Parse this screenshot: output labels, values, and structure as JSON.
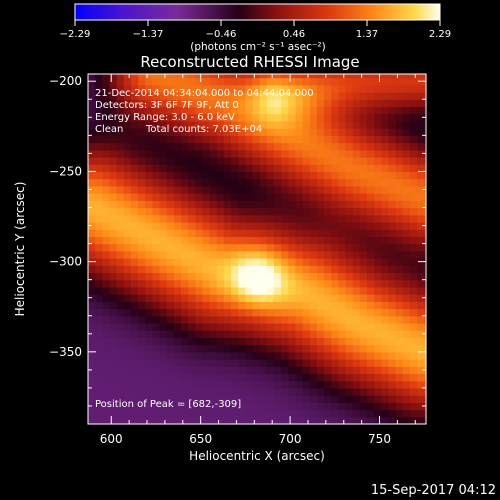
{
  "chart_data": {
    "type": "heatmap",
    "title": "Reconstructed RHESSI Image",
    "xlabel": "Heliocentric X (arcsec)",
    "ylabel": "Heliocentric Y (arcsec)",
    "xlim": [
      587,
      776
    ],
    "ylim": [
      -390,
      -196
    ],
    "x_ticks": [
      600,
      650,
      700,
      750
    ],
    "y_ticks": [
      -200,
      -250,
      -300,
      -350
    ],
    "colorbar": {
      "min": -2.29,
      "max": 2.29,
      "tick_labels": [
        "-2.29",
        "-1.37",
        "-0.46",
        "0.46",
        "1.37",
        "2.29"
      ],
      "units_label": "(photons cm⁻² s⁻¹ asec⁻²)",
      "colors": [
        "#0000ff",
        "#5010c0",
        "#7a2a9a",
        "#200010",
        "#8a1010",
        "#e03a10",
        "#ff8a18",
        "#ffd84a",
        "#fffff0"
      ]
    },
    "annotations": {
      "time_range": "21-Dec-2014 04:34:04.000 to 04:44:04.000",
      "detectors": "Detectors: 3F 6F 7F 9F, Att 0",
      "energy": "Energy Range: 3.0 - 6.0 keV",
      "clean_label": "Clean",
      "total_counts": "Total counts: 7.03E+04",
      "peak": "Position of Peak = [682,-309]"
    },
    "peak_position": [
      682,
      -309
    ],
    "peak_value": 2.29,
    "ridges": [
      {
        "points": [
          [
            590,
            -270
          ],
          [
            630,
            -290
          ],
          [
            660,
            -305
          ],
          [
            682,
            -309
          ],
          [
            710,
            -318
          ],
          [
            740,
            -335
          ],
          [
            776,
            -350
          ]
        ],
        "amplitude": 1.7,
        "width_arcsec": 22
      },
      {
        "points": [
          [
            625,
            -196
          ],
          [
            665,
            -212
          ],
          [
            700,
            -230
          ],
          [
            735,
            -248
          ],
          [
            776,
            -265
          ]
        ],
        "amplitude": 1.3,
        "width_arcsec": 18
      },
      {
        "points": [
          [
            695,
            -205
          ],
          [
            735,
            -200
          ],
          [
            776,
            -199
          ]
        ],
        "amplitude": 0.8,
        "width_arcsec": 12
      }
    ],
    "background_level": -0.7,
    "timestamp": "15-Sep-2017 04:12"
  }
}
